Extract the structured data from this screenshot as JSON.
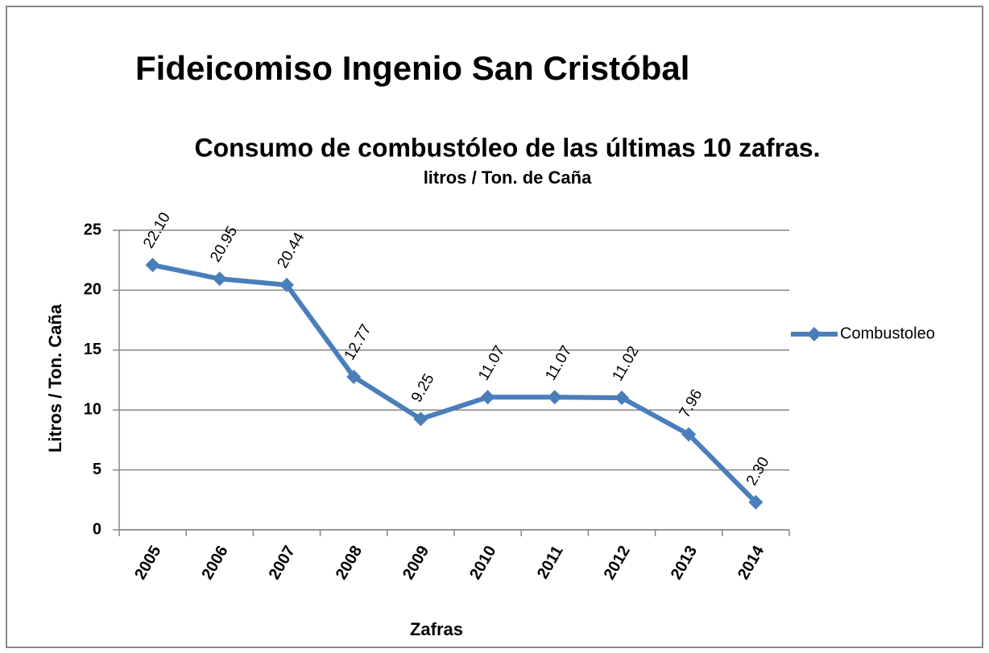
{
  "chart_data": {
    "type": "line",
    "title": "Fideicomiso Ingenio San Cristóbal",
    "subtitle": "Consumo de combustóleo de las últimas 10 zafras.",
    "subtitle2": "litros / Ton. de Caña",
    "x_label": "Zafras",
    "y_label": "Litros / Ton. Caña",
    "categories": [
      "2005",
      "2006",
      "2007",
      "2008",
      "2009",
      "2010",
      "2011",
      "2012",
      "2013",
      "2014"
    ],
    "series": [
      {
        "name": "Combustoleo",
        "color": "#4a7ebb",
        "values": [
          22.1,
          20.95,
          20.44,
          12.77,
          9.25,
          11.07,
          11.07,
          11.02,
          7.96,
          2.3
        ],
        "value_labels": [
          "22.10",
          "20.95",
          "20.44",
          "12.77",
          "9.25",
          "11.07",
          "11.07",
          "11.02",
          "7.96",
          "2.30"
        ]
      }
    ],
    "ylim": [
      0,
      25
    ],
    "yticks": [
      0,
      5,
      10,
      15,
      20,
      25
    ],
    "grid": true,
    "legend": "right"
  }
}
